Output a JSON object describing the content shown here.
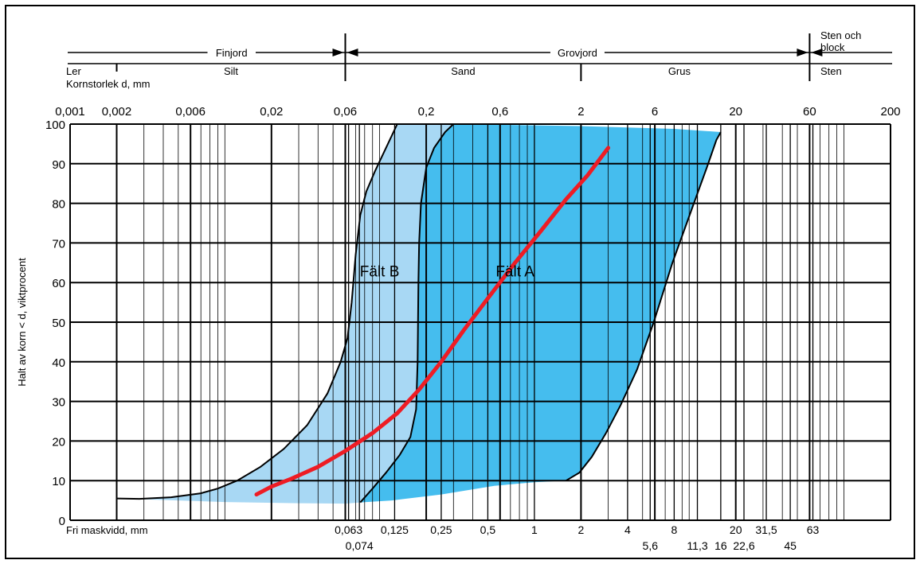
{
  "chart_data": {
    "type": "area",
    "ylabel": "Halt av korn < d, viktprocent",
    "xlabel_top": "Kornstorlek d, mm",
    "xlabel_bottom": "Fri maskvidd, mm",
    "x_scale": "log",
    "xlim": [
      0.001,
      200
    ],
    "ylim": [
      0,
      100
    ],
    "y_ticks": [
      0,
      10,
      20,
      30,
      40,
      50,
      60,
      70,
      80,
      90,
      100
    ],
    "grid": true,
    "top_ticks": [
      {
        "value": 0.001,
        "label": "0,001"
      },
      {
        "value": 0.002,
        "label": "0,002"
      },
      {
        "value": 0.006,
        "label": "0,006"
      },
      {
        "value": 0.02,
        "label": "0,02"
      },
      {
        "value": 0.06,
        "label": "0,06"
      },
      {
        "value": 0.2,
        "label": "0,2"
      },
      {
        "value": 0.6,
        "label": "0,6"
      },
      {
        "value": 2,
        "label": "2"
      },
      {
        "value": 6,
        "label": "6"
      },
      {
        "value": 20,
        "label": "20"
      },
      {
        "value": 60,
        "label": "60"
      },
      {
        "value": 200,
        "label": "200"
      }
    ],
    "sieve_ticks": [
      {
        "value": 0.063,
        "label": "0,063",
        "row": 1
      },
      {
        "value": 0.074,
        "label": "0,074",
        "row": 2
      },
      {
        "value": 0.125,
        "label": "0,125",
        "row": 1
      },
      {
        "value": 0.25,
        "label": "0,25",
        "row": 1
      },
      {
        "value": 0.5,
        "label": "0,5",
        "row": 1
      },
      {
        "value": 1,
        "label": "1",
        "row": 1
      },
      {
        "value": 2,
        "label": "2",
        "row": 1
      },
      {
        "value": 4,
        "label": "4",
        "row": 1
      },
      {
        "value": 5.6,
        "label": "5,6",
        "row": 2
      },
      {
        "value": 8,
        "label": "8",
        "row": 1
      },
      {
        "value": 11.3,
        "label": "11,3",
        "row": 2
      },
      {
        "value": 16,
        "label": "16",
        "row": 2
      },
      {
        "value": 20,
        "label": "20",
        "row": 1
      },
      {
        "value": 22.6,
        "label": "22,6",
        "row": 2
      },
      {
        "value": 31.5,
        "label": "31,5",
        "row": 1
      },
      {
        "value": 45,
        "label": "45",
        "row": 2
      },
      {
        "value": 63,
        "label": "63",
        "row": 1
      }
    ],
    "classes_top": [
      {
        "label": "Finjord",
        "from": 0.001,
        "to": 0.06
      },
      {
        "label": "Grovjord",
        "from": 0.06,
        "to": 60
      },
      {
        "label": "Sten och block",
        "from": 60,
        "to": 200
      }
    ],
    "classes_bottom": [
      {
        "label": "Ler",
        "from": 0.001,
        "to": 0.002
      },
      {
        "label": "Silt",
        "from": 0.002,
        "to": 0.06
      },
      {
        "label": "Sand",
        "from": 0.06,
        "to": 2
      },
      {
        "label": "Grus",
        "from": 2,
        "to": 60
      },
      {
        "label": "Sten",
        "from": 60,
        "to": 200
      }
    ],
    "fields": [
      {
        "name": "Fält B",
        "color": "#a8d8f4",
        "label_pos": {
          "x": 0.1,
          "y": 63
        },
        "polygon": [
          [
            0.002,
            5.5
          ],
          [
            0.0028,
            5.4
          ],
          [
            0.0045,
            5.8
          ],
          [
            0.007,
            6.8
          ],
          [
            0.009,
            8
          ],
          [
            0.012,
            10
          ],
          [
            0.017,
            13.5
          ],
          [
            0.024,
            18
          ],
          [
            0.034,
            24
          ],
          [
            0.046,
            32
          ],
          [
            0.056,
            40
          ],
          [
            0.062,
            46
          ],
          [
            0.066,
            55
          ],
          [
            0.07,
            67
          ],
          [
            0.075,
            77
          ],
          [
            0.082,
            83
          ],
          [
            0.093,
            88
          ],
          [
            0.11,
            94
          ],
          [
            0.13,
            100
          ],
          [
            0.3,
            100
          ],
          [
            0.265,
            98
          ],
          [
            0.225,
            94
          ],
          [
            0.2,
            89
          ],
          [
            0.185,
            80
          ],
          [
            0.18,
            70
          ],
          [
            0.178,
            60
          ],
          [
            0.177,
            50
          ],
          [
            0.176,
            40
          ],
          [
            0.172,
            28
          ],
          [
            0.158,
            21
          ],
          [
            0.135,
            16.5
          ],
          [
            0.11,
            12
          ],
          [
            0.09,
            8
          ],
          [
            0.075,
            4.5
          ],
          [
            0.06,
            4.2
          ],
          [
            0.03,
            4.3
          ],
          [
            0.01,
            4.6
          ],
          [
            0.005,
            5
          ]
        ]
      },
      {
        "name": "Fält A",
        "color": "#45bdee",
        "label_pos": {
          "x": 0.75,
          "y": 63
        },
        "polygon": [
          [
            0.3,
            100
          ],
          [
            2,
            99.5
          ],
          [
            8,
            98.8
          ],
          [
            16,
            98
          ],
          [
            15,
            96
          ],
          [
            13,
            89
          ],
          [
            10.5,
            79
          ],
          [
            7.8,
            65
          ],
          [
            5.9,
            50
          ],
          [
            4.6,
            38
          ],
          [
            3.6,
            29
          ],
          [
            2.9,
            22
          ],
          [
            2.35,
            16
          ],
          [
            1.95,
            12
          ],
          [
            1.6,
            10
          ],
          [
            1,
            9.6
          ],
          [
            0.55,
            8.7
          ],
          [
            0.25,
            6.5
          ],
          [
            0.12,
            5
          ],
          [
            0.075,
            4.5
          ],
          [
            0.09,
            8
          ],
          [
            0.11,
            12
          ],
          [
            0.135,
            16.5
          ],
          [
            0.158,
            21
          ],
          [
            0.172,
            28
          ],
          [
            0.176,
            40
          ],
          [
            0.177,
            50
          ],
          [
            0.178,
            60
          ],
          [
            0.18,
            70
          ],
          [
            0.185,
            80
          ],
          [
            0.2,
            89
          ],
          [
            0.225,
            94
          ],
          [
            0.265,
            98
          ]
        ]
      }
    ],
    "series": [
      {
        "color": "#ee1c24",
        "points": [
          [
            0.016,
            6.5
          ],
          [
            0.02,
            8.5
          ],
          [
            0.027,
            10.5
          ],
          [
            0.04,
            13.5
          ],
          [
            0.06,
            17.5
          ],
          [
            0.09,
            22
          ],
          [
            0.13,
            27
          ],
          [
            0.18,
            33
          ],
          [
            0.25,
            40
          ],
          [
            0.35,
            48
          ],
          [
            0.5,
            56
          ],
          [
            0.75,
            65
          ],
          [
            1.1,
            73
          ],
          [
            1.6,
            81
          ],
          [
            2.2,
            87
          ],
          [
            3,
            94
          ]
        ]
      }
    ]
  }
}
